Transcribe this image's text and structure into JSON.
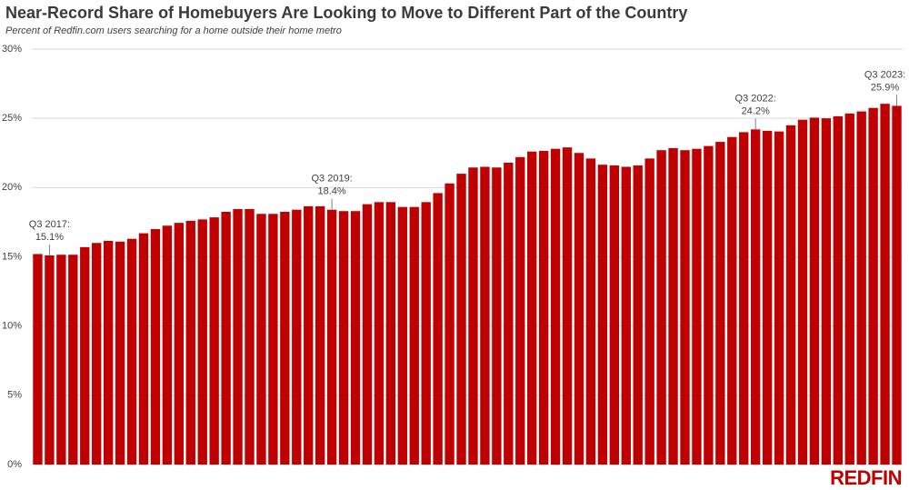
{
  "chart_data": {
    "type": "bar",
    "title": "Near-Record Share of Homebuyers Are Looking to Move to Different Part of the Country",
    "subtitle": "Percent of Redfin.com users searching for a home outside their home metro",
    "brand": "REDFIN",
    "color": "#c00000",
    "grid": true,
    "ylim": [
      0,
      30
    ],
    "yticks": [
      {
        "value": 0,
        "label": "0%"
      },
      {
        "value": 5,
        "label": "5%"
      },
      {
        "value": 10,
        "label": "10%"
      },
      {
        "value": 15,
        "label": "15%"
      },
      {
        "value": 20,
        "label": "20%"
      },
      {
        "value": 25,
        "label": "25%"
      },
      {
        "value": 30,
        "label": "30%"
      }
    ],
    "categories": [
      null,
      "Q3 2017:",
      null,
      null,
      null,
      null,
      null,
      null,
      null,
      null,
      null,
      null,
      null,
      null,
      null,
      null,
      null,
      null,
      null,
      null,
      null,
      null,
      null,
      null,
      null,
      "Q3 2019:",
      null,
      null,
      null,
      null,
      null,
      null,
      null,
      null,
      null,
      null,
      null,
      null,
      null,
      null,
      null,
      null,
      null,
      null,
      null,
      null,
      null,
      null,
      null,
      null,
      null,
      null,
      null,
      null,
      null,
      null,
      null,
      null,
      null,
      null,
      null,
      "Q3 2022:",
      null,
      null,
      null,
      null,
      null,
      null,
      null,
      null,
      null,
      null,
      null,
      "Q3 2023:"
    ],
    "values": [
      15.2,
      15.1,
      15.15,
      15.15,
      15.7,
      16.0,
      16.15,
      16.1,
      16.3,
      16.7,
      17.0,
      17.25,
      17.45,
      17.6,
      17.7,
      17.85,
      18.25,
      18.45,
      18.45,
      18.1,
      18.1,
      18.25,
      18.4,
      18.65,
      18.65,
      18.4,
      18.3,
      18.3,
      18.8,
      18.95,
      18.95,
      18.6,
      18.6,
      18.95,
      19.6,
      20.3,
      21.0,
      21.45,
      21.5,
      21.45,
      21.8,
      22.2,
      22.6,
      22.65,
      22.8,
      22.9,
      22.5,
      22.1,
      21.65,
      21.6,
      21.5,
      21.6,
      22.1,
      22.7,
      22.85,
      22.7,
      22.8,
      23.0,
      23.3,
      23.65,
      24.0,
      24.2,
      24.1,
      24.05,
      24.5,
      24.9,
      25.05,
      25.0,
      25.15,
      25.35,
      25.5,
      25.75,
      26.05,
      25.9
    ],
    "value_labels": [
      null,
      "15.1%",
      null,
      null,
      null,
      null,
      null,
      null,
      null,
      null,
      null,
      null,
      null,
      null,
      null,
      null,
      null,
      null,
      null,
      null,
      null,
      null,
      null,
      null,
      null,
      "18.4%",
      null,
      null,
      null,
      null,
      null,
      null,
      null,
      null,
      null,
      null,
      null,
      null,
      null,
      null,
      null,
      null,
      null,
      null,
      null,
      null,
      null,
      null,
      null,
      null,
      null,
      null,
      null,
      null,
      null,
      null,
      null,
      null,
      null,
      null,
      null,
      "24.2%",
      null,
      null,
      null,
      null,
      null,
      null,
      null,
      null,
      null,
      null,
      null,
      "25.9%"
    ]
  }
}
